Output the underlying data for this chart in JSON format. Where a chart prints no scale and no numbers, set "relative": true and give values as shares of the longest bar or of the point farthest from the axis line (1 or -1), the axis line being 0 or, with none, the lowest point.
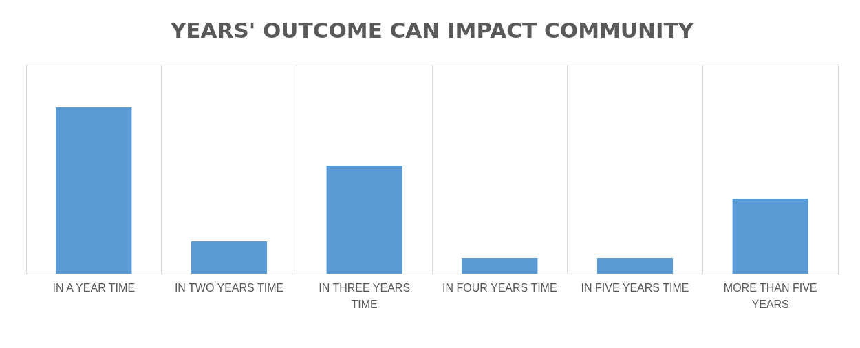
{
  "chart_data": {
    "type": "bar",
    "title": "YEARS' OUTCOME CAN IMPACT COMMUNITY",
    "categories": [
      "IN A YEAR TIME",
      "IN TWO YEARS TIME",
      "IN  THREE YEARS TIME",
      "IN FOUR YEARS TIME",
      "IN FIVE YEARS TIME",
      "MORE THAN FIVE YEARS"
    ],
    "values": [
      1,
      0.194,
      0.649,
      0.095,
      0.095,
      0.45
    ],
    "color": "#5b9bd5",
    "relative": true,
    "grid": "x"
  }
}
